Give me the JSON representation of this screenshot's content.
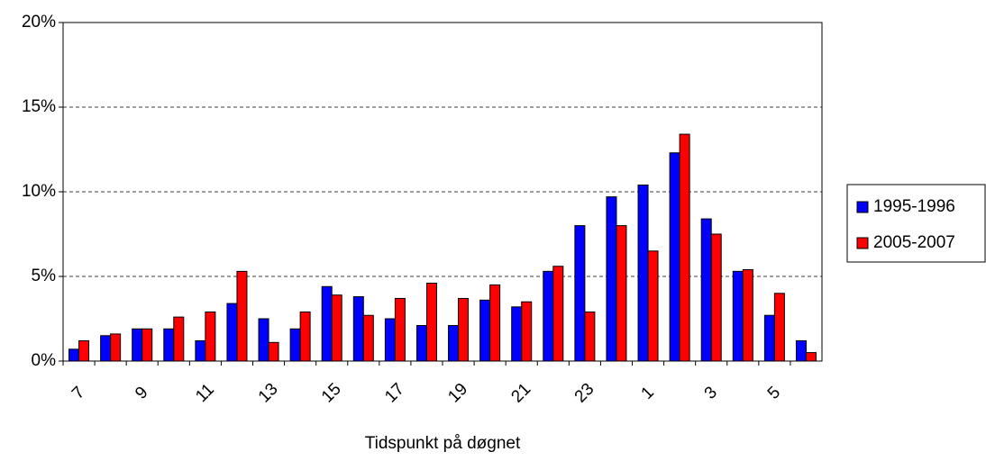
{
  "chart_data": {
    "type": "bar",
    "x_label": "Tidspunkt på døgnet",
    "categories": [
      "7",
      null,
      "9",
      null,
      "11",
      null,
      "13",
      null,
      "15",
      null,
      "17",
      null,
      "19",
      null,
      "21",
      null,
      "23",
      null,
      "1",
      null,
      "3",
      null,
      "5",
      null
    ],
    "series": [
      {
        "name": "1995-1996",
        "color": "#0000ff",
        "values": [
          0.7,
          1.5,
          1.9,
          1.9,
          1.2,
          3.4,
          2.5,
          1.9,
          4.4,
          3.8,
          2.5,
          2.1,
          2.1,
          3.6,
          3.2,
          5.3,
          8.0,
          9.7,
          10.4,
          12.3,
          8.4,
          5.3,
          2.7,
          1.2
        ]
      },
      {
        "name": "2005-2007",
        "color": "#ff0000",
        "values": [
          1.2,
          1.6,
          1.9,
          2.6,
          2.9,
          5.3,
          1.1,
          2.9,
          3.9,
          2.7,
          3.7,
          4.6,
          3.7,
          4.5,
          3.5,
          5.6,
          2.9,
          8.0,
          6.5,
          13.4,
          7.5,
          5.4,
          4.0,
          0.5
        ]
      }
    ],
    "ylim": [
      0,
      20
    ],
    "yticks": [
      {
        "value": 0,
        "label": "0%"
      },
      {
        "value": 5,
        "label": "5%"
      },
      {
        "value": 10,
        "label": "10%"
      },
      {
        "value": 15,
        "label": "15%"
      },
      {
        "value": 20,
        "label": "20%"
      }
    ],
    "grid": true,
    "legend": "right"
  }
}
